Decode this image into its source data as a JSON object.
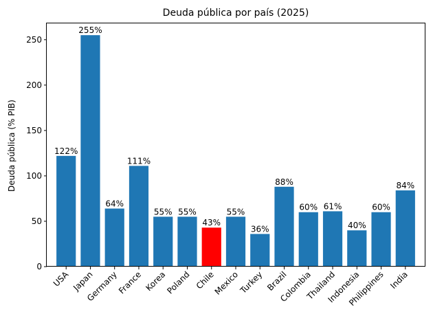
{
  "chart_data": {
    "type": "bar",
    "title": "Deuda pública por país (2025)",
    "xlabel": "",
    "ylabel": "Deuda pública (% PIB)",
    "categories": [
      "USA",
      "Japan",
      "Germany",
      "France",
      "Korea",
      "Poland",
      "Chile",
      "Mexico",
      "Turkey",
      "Brazil",
      "Colombia",
      "Thailand",
      "Indonesia",
      "Philippines",
      "India"
    ],
    "values": [
      122,
      255,
      64,
      111,
      55,
      55,
      43,
      55,
      36,
      88,
      60,
      61,
      40,
      60,
      84
    ],
    "data_labels": [
      "122%",
      "255%",
      "64%",
      "111%",
      "55%",
      "55%",
      "43%",
      "55%",
      "36%",
      "88%",
      "60%",
      "61%",
      "40%",
      "60%",
      "84%"
    ],
    "colors": [
      "#1f77b4",
      "#1f77b4",
      "#1f77b4",
      "#1f77b4",
      "#1f77b4",
      "#1f77b4",
      "#ff0000",
      "#1f77b4",
      "#1f77b4",
      "#1f77b4",
      "#1f77b4",
      "#1f77b4",
      "#1f77b4",
      "#1f77b4",
      "#1f77b4"
    ],
    "ylim": [
      0,
      268
    ],
    "yticks": [
      0,
      50,
      100,
      150,
      200,
      250
    ],
    "grid": false,
    "legend": "none"
  }
}
